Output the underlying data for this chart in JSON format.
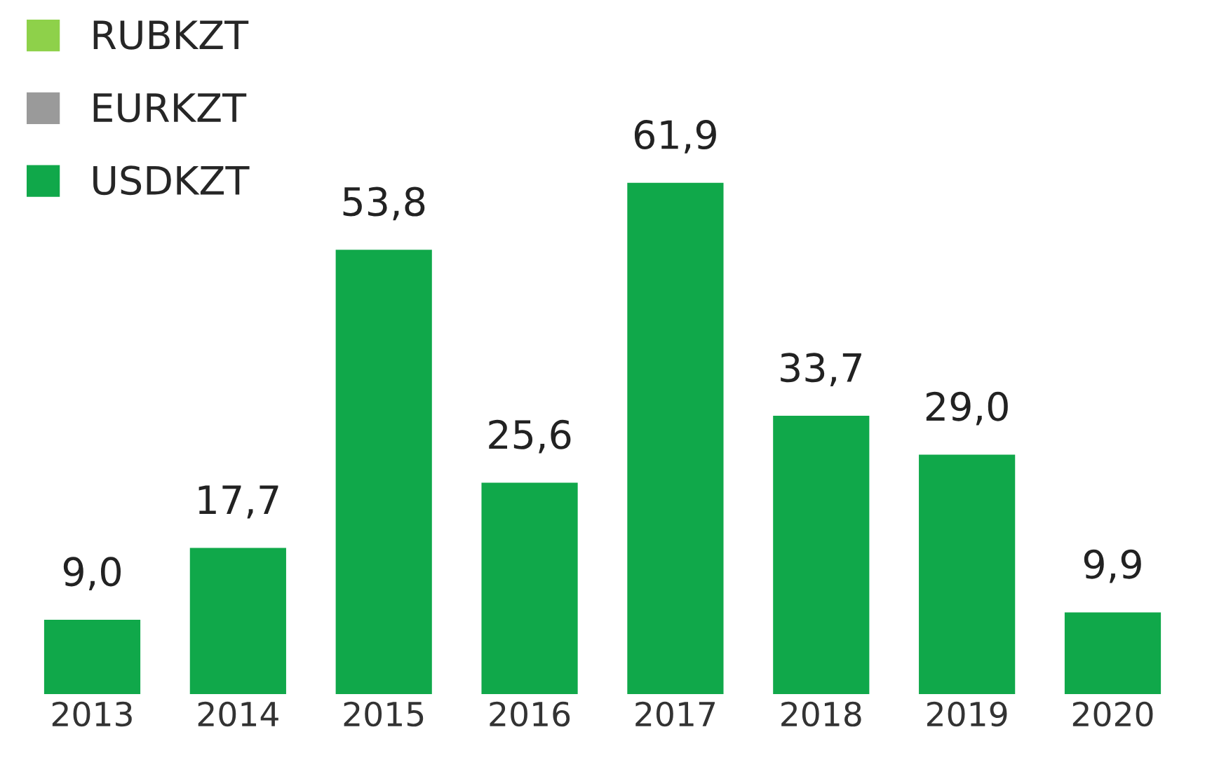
{
  "chart_data": {
    "type": "bar",
    "stacked": true,
    "categories": [
      "2013",
      "2014",
      "2015",
      "2016",
      "2017",
      "2018",
      "2019",
      "2020"
    ],
    "series": [
      {
        "name": "USDKZT",
        "color": "#10a84a",
        "values": [
          9.0,
          17.7,
          53.8,
          25.6,
          61.9,
          33.7,
          29.0,
          9.9
        ],
        "value_labels": [
          "9,0",
          "17,7",
          "53,8",
          "25,6",
          "61,9",
          "33,7",
          "29,0",
          "9,9"
        ]
      },
      {
        "name": "EURKZT",
        "color": "#9a9a9a",
        "values": [
          null,
          null,
          null,
          null,
          null,
          null,
          null,
          null
        ]
      },
      {
        "name": "RUBKZT",
        "color": "#8ed14a",
        "values": [
          null,
          null,
          null,
          null,
          null,
          null,
          null,
          null
        ]
      }
    ],
    "legend": "top left",
    "grid": false,
    "tick_labels": "x"
  }
}
